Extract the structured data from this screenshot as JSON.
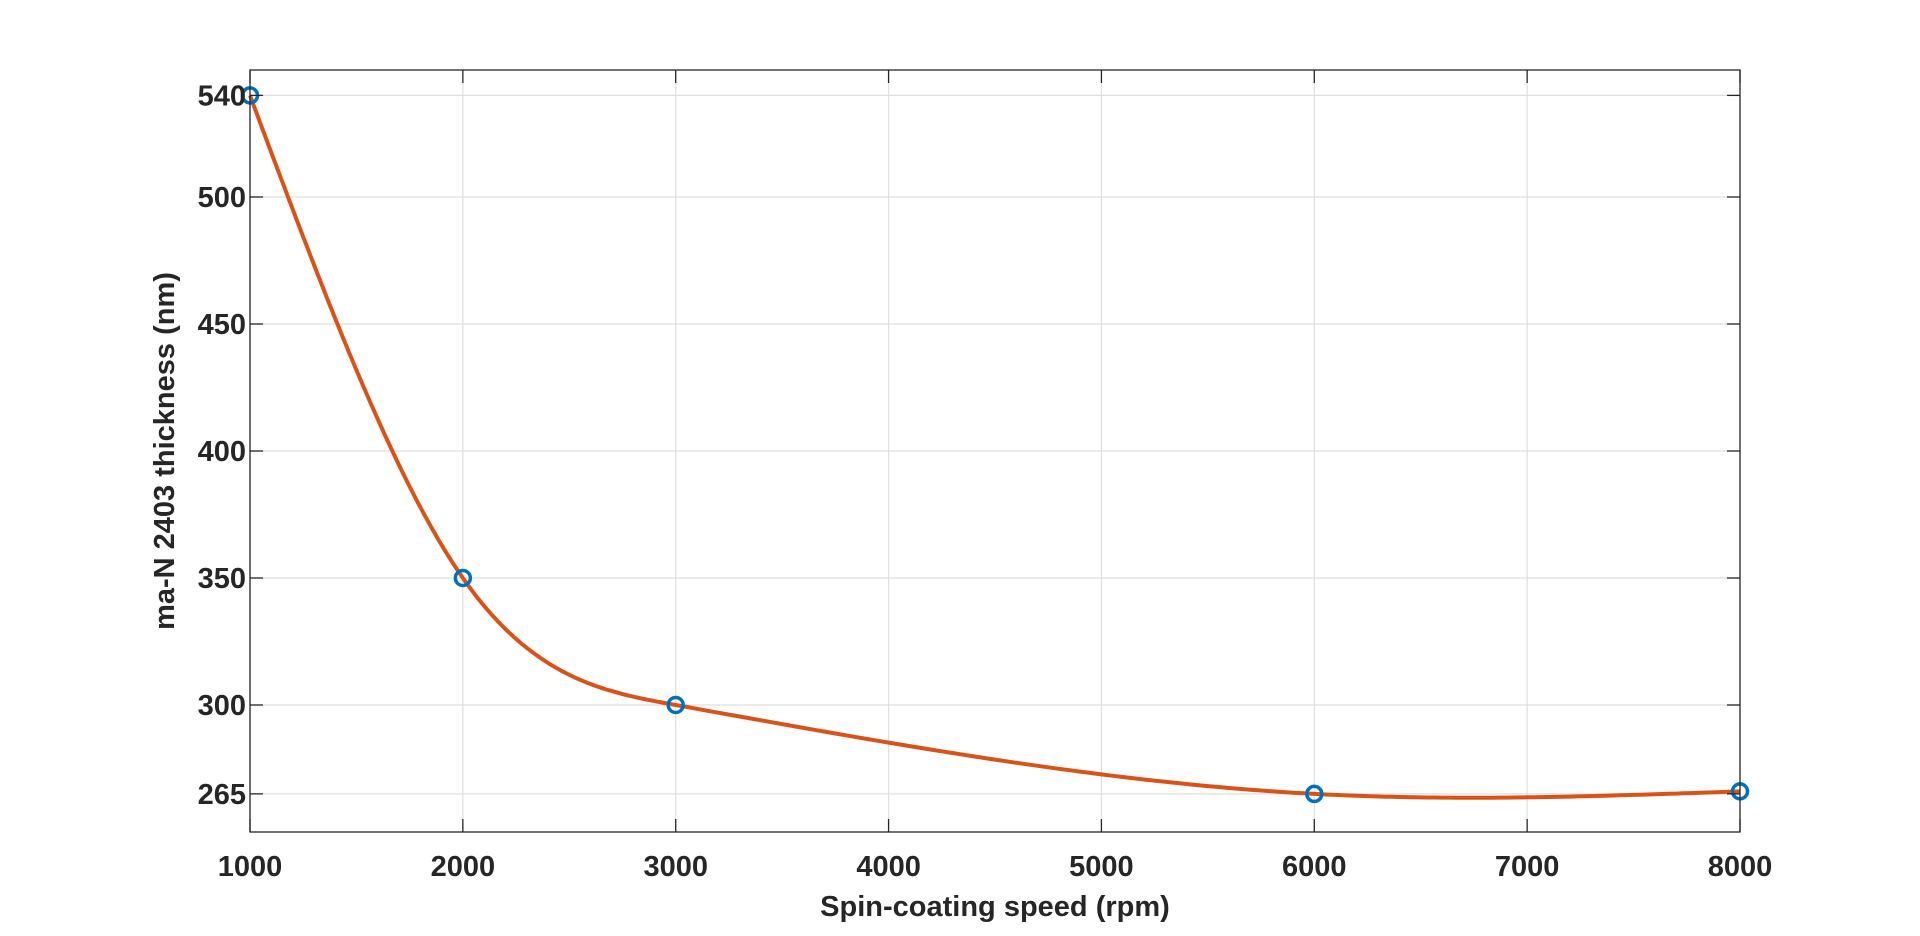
{
  "chart_data": {
    "type": "line",
    "title": "",
    "xlabel": "Spin-coating speed (rpm)",
    "ylabel": "ma-N 2403 thickness (nm)",
    "xlim": [
      1000,
      8000
    ],
    "ylim": [
      250,
      550
    ],
    "xticks": [
      1000,
      2000,
      3000,
      4000,
      5000,
      6000,
      7000,
      8000
    ],
    "yticks": [
      265,
      300,
      350,
      400,
      450,
      500,
      540
    ],
    "grid": true,
    "series": [
      {
        "kind": "markers",
        "marker": "circle",
        "color": "#0072BD",
        "x": [
          1000,
          2000,
          3000,
          6000,
          8000
        ],
        "y": [
          540,
          350,
          300,
          265,
          266
        ]
      },
      {
        "kind": "spline-fit",
        "color": "#D95319",
        "x": [
          1000,
          2000,
          3000,
          6000,
          8000
        ],
        "y": [
          540,
          350,
          300,
          265,
          266
        ]
      }
    ]
  }
}
